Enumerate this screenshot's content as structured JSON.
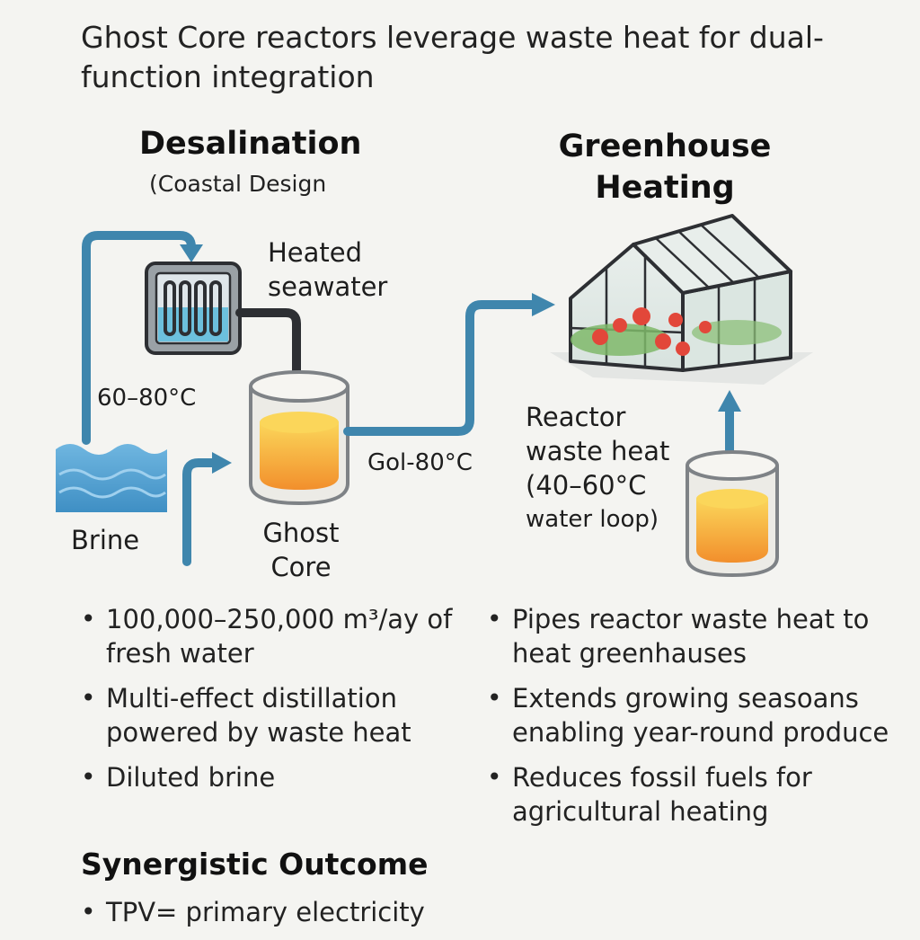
{
  "title": "Ghost Core reactors leverage waste heat for dual-function integration",
  "desalination": {
    "heading": "Desalination",
    "subheading": "(Coastal Design"
  },
  "greenhouse": {
    "heading_line1": "Greenhouse",
    "heading_line2": "Heating"
  },
  "labels": {
    "heated_seawater_1": "Heated",
    "heated_seawater_2": "seawater",
    "temp_left": "60–80°C",
    "brine": "Brine",
    "ghost_core_1": "Ghost",
    "ghost_core_2": "Core",
    "temp_mid": "Gol-80°C",
    "reactor_1": "Reactor",
    "reactor_2": "waste heat",
    "reactor_3": "(40–60°C",
    "reactor_4": "water loop)"
  },
  "bullets_left": [
    "100,000–250,000 m³/ay of fresh water",
    "Multi-effect distillation powered by waste heat",
    "Diluted brine"
  ],
  "bullets_right": [
    "Pipes reactor waste heat to heat greenhauses",
    "Extends growing seasoans enabling year-round produce",
    "Reduces fossil fuels for agricultural heating"
  ],
  "outcome": {
    "heading": "Synergistic Outcome",
    "bullets": [
      "TPV= primary electricity"
    ]
  },
  "colors": {
    "pipe_blue": "#3f86ad",
    "dark_pipe": "#2d2f33",
    "core_orange": "#f5a33a",
    "core_yellow": "#fbd65a",
    "water_blue": "#5aa9d8",
    "greenhouse_glass": "#cfe3dd",
    "tomato_red": "#e2473a"
  },
  "icons": [
    "seawater-tank-icon",
    "brine-water-icon",
    "ghost-core-reactor-icon",
    "greenhouse-icon",
    "reactor-heat-icon"
  ]
}
